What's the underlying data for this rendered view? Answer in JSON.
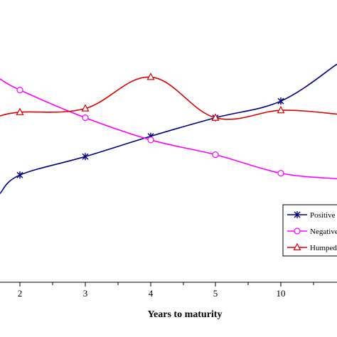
{
  "chart_data": {
    "type": "line",
    "categories": [
      "2",
      "3",
      "4",
      "5",
      "10"
    ],
    "xlabel": "Years to maturity",
    "ylabel": "",
    "title": "",
    "ylim": [
      0,
      100
    ],
    "grid": false,
    "legend": "right",
    "series": [
      {
        "name": "Positive",
        "marker": "star",
        "color": "#000080",
        "values": [
          58,
          68,
          79,
          89,
          98
        ]
      },
      {
        "name": "Negative",
        "marker": "circle",
        "color": "#ff00ff",
        "values": [
          104,
          89,
          77,
          69,
          59
        ]
      },
      {
        "name": "Humped",
        "marker": "triangle",
        "color": "#dd0000",
        "values": [
          92,
          94,
          111,
          89,
          93
        ]
      }
    ],
    "legend_labels": [
      "Positive",
      "Negative",
      "Humped"
    ]
  }
}
